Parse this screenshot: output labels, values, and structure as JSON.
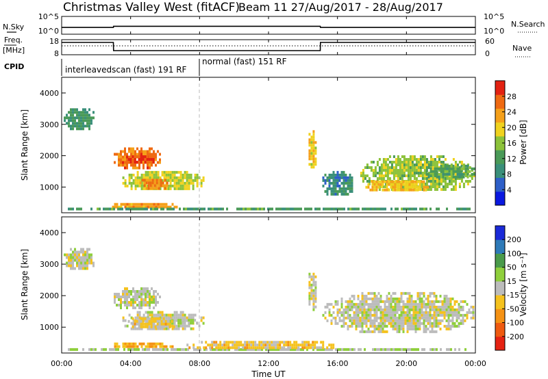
{
  "header": {
    "title": "Christmas Valley West (fitACF)",
    "beam_date": "Beam 11  27/Aug/2017 - 28/Aug/2017"
  },
  "time_axis": {
    "start_hours": 0,
    "end_hours": 24,
    "ticks": [
      "00:00",
      "04:00",
      "08:00",
      "12:00",
      "16:00",
      "20:00",
      "00:00"
    ],
    "label": "Time UT"
  },
  "top_strip": {
    "left_label": "N.Sky",
    "right_label": "N.Search",
    "left_ticks": [
      "10^5",
      "10^0"
    ],
    "right_ticks": [
      "10^5",
      "10^0"
    ]
  },
  "freq_strip": {
    "left_label_1": "Freq.",
    "left_label_2": "[MHz]",
    "right_label": "Nave",
    "left_ticks": [
      "18",
      "8"
    ],
    "right_ticks": [
      "60",
      "0"
    ]
  },
  "cpid": {
    "label": "CPID",
    "segments": [
      {
        "name": "interleavedscan (fast) 191 RF",
        "start": 0,
        "end": 8
      },
      {
        "name": "normal (fast) 151 RF",
        "start": 8,
        "end": 24
      }
    ]
  },
  "colors": {
    "power_scale": [
      "#0a18e0",
      "#2e5fc8",
      "#3a8f7a",
      "#4a9a58",
      "#8cc23a",
      "#f0d21e",
      "#f5a01a",
      "#ef6a12",
      "#e32212"
    ],
    "velocity_scale": [
      "#e52212",
      "#ef5a10",
      "#f59214",
      "#f5c21e",
      "#bcbcbc",
      "#8fcf3c",
      "#4a9a4a",
      "#2e7ab8",
      "#1a2ad8"
    ]
  },
  "chart_data": [
    {
      "type": "line",
      "title": "",
      "ylabel": "N.Sky",
      "y2label": "N.Search",
      "scale": "log",
      "series": [
        {
          "name": "N.Sky",
          "x": [
            0,
            3,
            3.01,
            15,
            15.01,
            24
          ],
          "y": [
            30,
            30,
            80,
            80,
            30,
            30
          ]
        }
      ]
    },
    {
      "type": "line",
      "ylabel": "Freq. [MHz]",
      "y2label": "Nave",
      "ylim": [
        8,
        18
      ],
      "y2lim": [
        0,
        60
      ],
      "series": [
        {
          "name": "Freq.",
          "x": [
            0,
            3,
            3.01,
            15,
            15.01,
            24
          ],
          "y": [
            16.5,
            16.5,
            10.5,
            10.5,
            16.5,
            16.5
          ]
        },
        {
          "name": "Nave",
          "x": [
            0,
            24
          ],
          "y": [
            36,
            36
          ]
        }
      ]
    },
    {
      "type": "heatmap",
      "ylabel": "Slant Range [km]",
      "xlim": [
        0,
        24
      ],
      "ylim": [
        180,
        4500
      ],
      "yticks": [
        1000,
        2000,
        3000,
        4000
      ],
      "colorbar_label": "Power [dB]",
      "colorbar_ticks": [
        4,
        8,
        12,
        16,
        20,
        24,
        28
      ],
      "colorbar_range": [
        0,
        32
      ],
      "regions": [
        {
          "t0": 0.0,
          "t1": 2.0,
          "r0": 2800,
          "r1": 3600,
          "value": 11
        },
        {
          "t0": 2.9,
          "t1": 5.8,
          "r0": 1550,
          "r1": 2350,
          "value": 26
        },
        {
          "t0": 3.6,
          "t1": 5.4,
          "r0": 1700,
          "r1": 2100,
          "value": 29
        },
        {
          "t0": 3.4,
          "t1": 8.3,
          "r0": 850,
          "r1": 1600,
          "value": 18
        },
        {
          "t0": 4.4,
          "t1": 6.2,
          "r0": 900,
          "r1": 1350,
          "value": 25
        },
        {
          "t0": 2.8,
          "t1": 6.8,
          "r0": 270,
          "r1": 580,
          "value": 23
        },
        {
          "t0": 0.0,
          "t1": 24.0,
          "r0": 200,
          "r1": 430,
          "value": 12
        },
        {
          "t0": 14.2,
          "t1": 14.8,
          "r0": 1500,
          "r1": 2900,
          "value": 20
        },
        {
          "t0": 15.0,
          "t1": 17.0,
          "r0": 700,
          "r1": 1600,
          "value": 9
        },
        {
          "t0": 17.2,
          "t1": 24.0,
          "r0": 800,
          "r1": 2100,
          "value": 16
        },
        {
          "t0": 17.5,
          "t1": 21.5,
          "r0": 850,
          "r1": 1300,
          "value": 21
        },
        {
          "t0": 21.0,
          "t1": 24.0,
          "r0": 1200,
          "r1": 1800,
          "value": 13
        }
      ]
    },
    {
      "type": "heatmap",
      "ylabel": "Slant Range [km]",
      "xlim": [
        0,
        24
      ],
      "ylim": [
        180,
        4500
      ],
      "yticks": [
        1000,
        2000,
        3000,
        4000
      ],
      "colorbar_label": "Velocity [m s^-1]",
      "colorbar_ticks": [
        200,
        100,
        50,
        15,
        -15,
        -50,
        -100,
        -200
      ],
      "colorbar_range": [
        -250,
        250
      ],
      "regions": [
        {
          "t0": 0.0,
          "t1": 2.0,
          "r0": 2800,
          "r1": 3600,
          "value": 0
        },
        {
          "t0": 2.9,
          "t1": 5.8,
          "r0": 1550,
          "r1": 2350,
          "value": 5
        },
        {
          "t0": 3.4,
          "t1": 8.3,
          "r0": 850,
          "r1": 1600,
          "value": 0
        },
        {
          "t0": 3.6,
          "t1": 6.6,
          "r0": 900,
          "r1": 1400,
          "value": -40
        },
        {
          "t0": 6.6,
          "t1": 8.0,
          "r0": 1050,
          "r1": 1350,
          "value": 40
        },
        {
          "t0": 2.8,
          "t1": 6.5,
          "r0": 270,
          "r1": 600,
          "value": -70
        },
        {
          "t0": 0.0,
          "t1": 24.0,
          "r0": 200,
          "r1": 420,
          "value": 30
        },
        {
          "t0": 7.0,
          "t1": 16.0,
          "r0": 220,
          "r1": 650,
          "value": -45
        },
        {
          "t0": 14.2,
          "t1": 14.8,
          "r0": 1500,
          "r1": 2900,
          "value": 0
        },
        {
          "t0": 15.0,
          "t1": 24.0,
          "r0": 800,
          "r1": 2200,
          "value": 0
        }
      ]
    }
  ],
  "power_colorbar": {
    "label": "Power [dB]",
    "ticks": [
      "28",
      "24",
      "20",
      "16",
      "12",
      "8",
      "4"
    ]
  },
  "velocity_colorbar": {
    "label": "Velocity [m s⁻¹]",
    "ticks": [
      "200",
      "100",
      "50",
      "15",
      "-15",
      "-50",
      "-100",
      "-200"
    ]
  },
  "range_axis": {
    "label": "Slant Range [km]",
    "ticks": [
      "1000",
      "2000",
      "3000",
      "4000"
    ]
  }
}
